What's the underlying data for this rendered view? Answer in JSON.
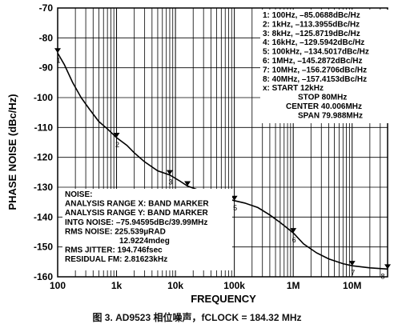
{
  "chart_data": {
    "type": "line",
    "xlabel": "FREQUENCY",
    "ylabel": "PHASE NOISE (dBc/Hz)",
    "xscale": "log",
    "xlim": [
      100,
      40000000
    ],
    "ylim": [
      -160,
      -70
    ],
    "x_ticks": [
      {
        "value": 100,
        "label": "100"
      },
      {
        "value": 1000,
        "label": "1k"
      },
      {
        "value": 10000,
        "label": "10k"
      },
      {
        "value": 100000,
        "label": "100k"
      },
      {
        "value": 1000000,
        "label": "1M"
      },
      {
        "value": 10000000,
        "label": "10M"
      }
    ],
    "y_ticks": [
      -70,
      -80,
      -90,
      -100,
      -110,
      -120,
      -130,
      -140,
      -150,
      -160
    ],
    "grid": true,
    "series": [
      {
        "x": [
          100,
          130,
          180,
          250,
          350,
          500,
          700,
          1000,
          1500,
          2000,
          3000,
          5000,
          8000,
          12000,
          16000,
          25000,
          40000,
          70000,
          100000,
          150000,
          250000,
          400000,
          600000,
          1000000,
          1500000,
          2500000,
          4000000,
          7000000,
          10000000,
          20000000,
          40000000
        ],
        "y": [
          -85.1,
          -89,
          -95,
          -100,
          -104,
          -108,
          -110.5,
          -113.4,
          -116,
          -118.5,
          -121.5,
          -124.5,
          -125.9,
          -128,
          -129.6,
          -131,
          -132.5,
          -133.7,
          -134.5,
          -135.3,
          -136.8,
          -139.3,
          -141.8,
          -145.3,
          -149,
          -152,
          -154,
          -155.6,
          -156.3,
          -157,
          -157.4
        ]
      }
    ],
    "markers": [
      {
        "n": "1",
        "x": 100,
        "y": -85.0688
      },
      {
        "n": "2",
        "x": 1000,
        "y": -113.3955
      },
      {
        "n": "3",
        "x": 8000,
        "y": -125.8719
      },
      {
        "n": "4",
        "x": 16000,
        "y": -129.5942
      },
      {
        "n": "5",
        "x": 100000,
        "y": -134.5017
      },
      {
        "n": "6",
        "x": 1000000,
        "y": -145.2872
      },
      {
        "n": "7",
        "x": 10000000,
        "y": -156.2706
      },
      {
        "n": "8",
        "x": 40000000,
        "y": -157.4153
      }
    ],
    "marker_table": [
      "1: 100Hz, –85.0688dBc/Hz",
      "2: 1kHz, –113.3955dBc/Hz",
      "3: 8kHz, –125.8719dBc/Hz",
      "4: 16kHz, –129.5942dBc/Hz",
      "5: 100kHz, –134.5017dBc/Hz",
      "6: 1MHz, –145.2872dBc/Hz",
      "7: 10MHz, –156.2706dBc/Hz",
      "8: 40MHz, –157.4153dBc/Hz",
      "x: START 12kHz",
      "STOP 80MHz",
      "CENTER 40.006MHz",
      "SPAN 79.988MHz"
    ],
    "noise_box": [
      "NOISE:",
      "ANALYSIS RANGE X: BAND MARKER",
      "ANALYSIS RANGE Y: BAND MARKER",
      "INTG NOISE: –75.94595dBc/39.99MHz",
      "RMS NOISE: 225.539µRAD",
      "12.9224mdeg",
      "RMS JITTER: 194.746fsec",
      "RESIDUAL FM: 2.81623kHz"
    ]
  },
  "caption": "图 3. AD9523 相位噪声，fCLOCK = 184.32 MHz"
}
